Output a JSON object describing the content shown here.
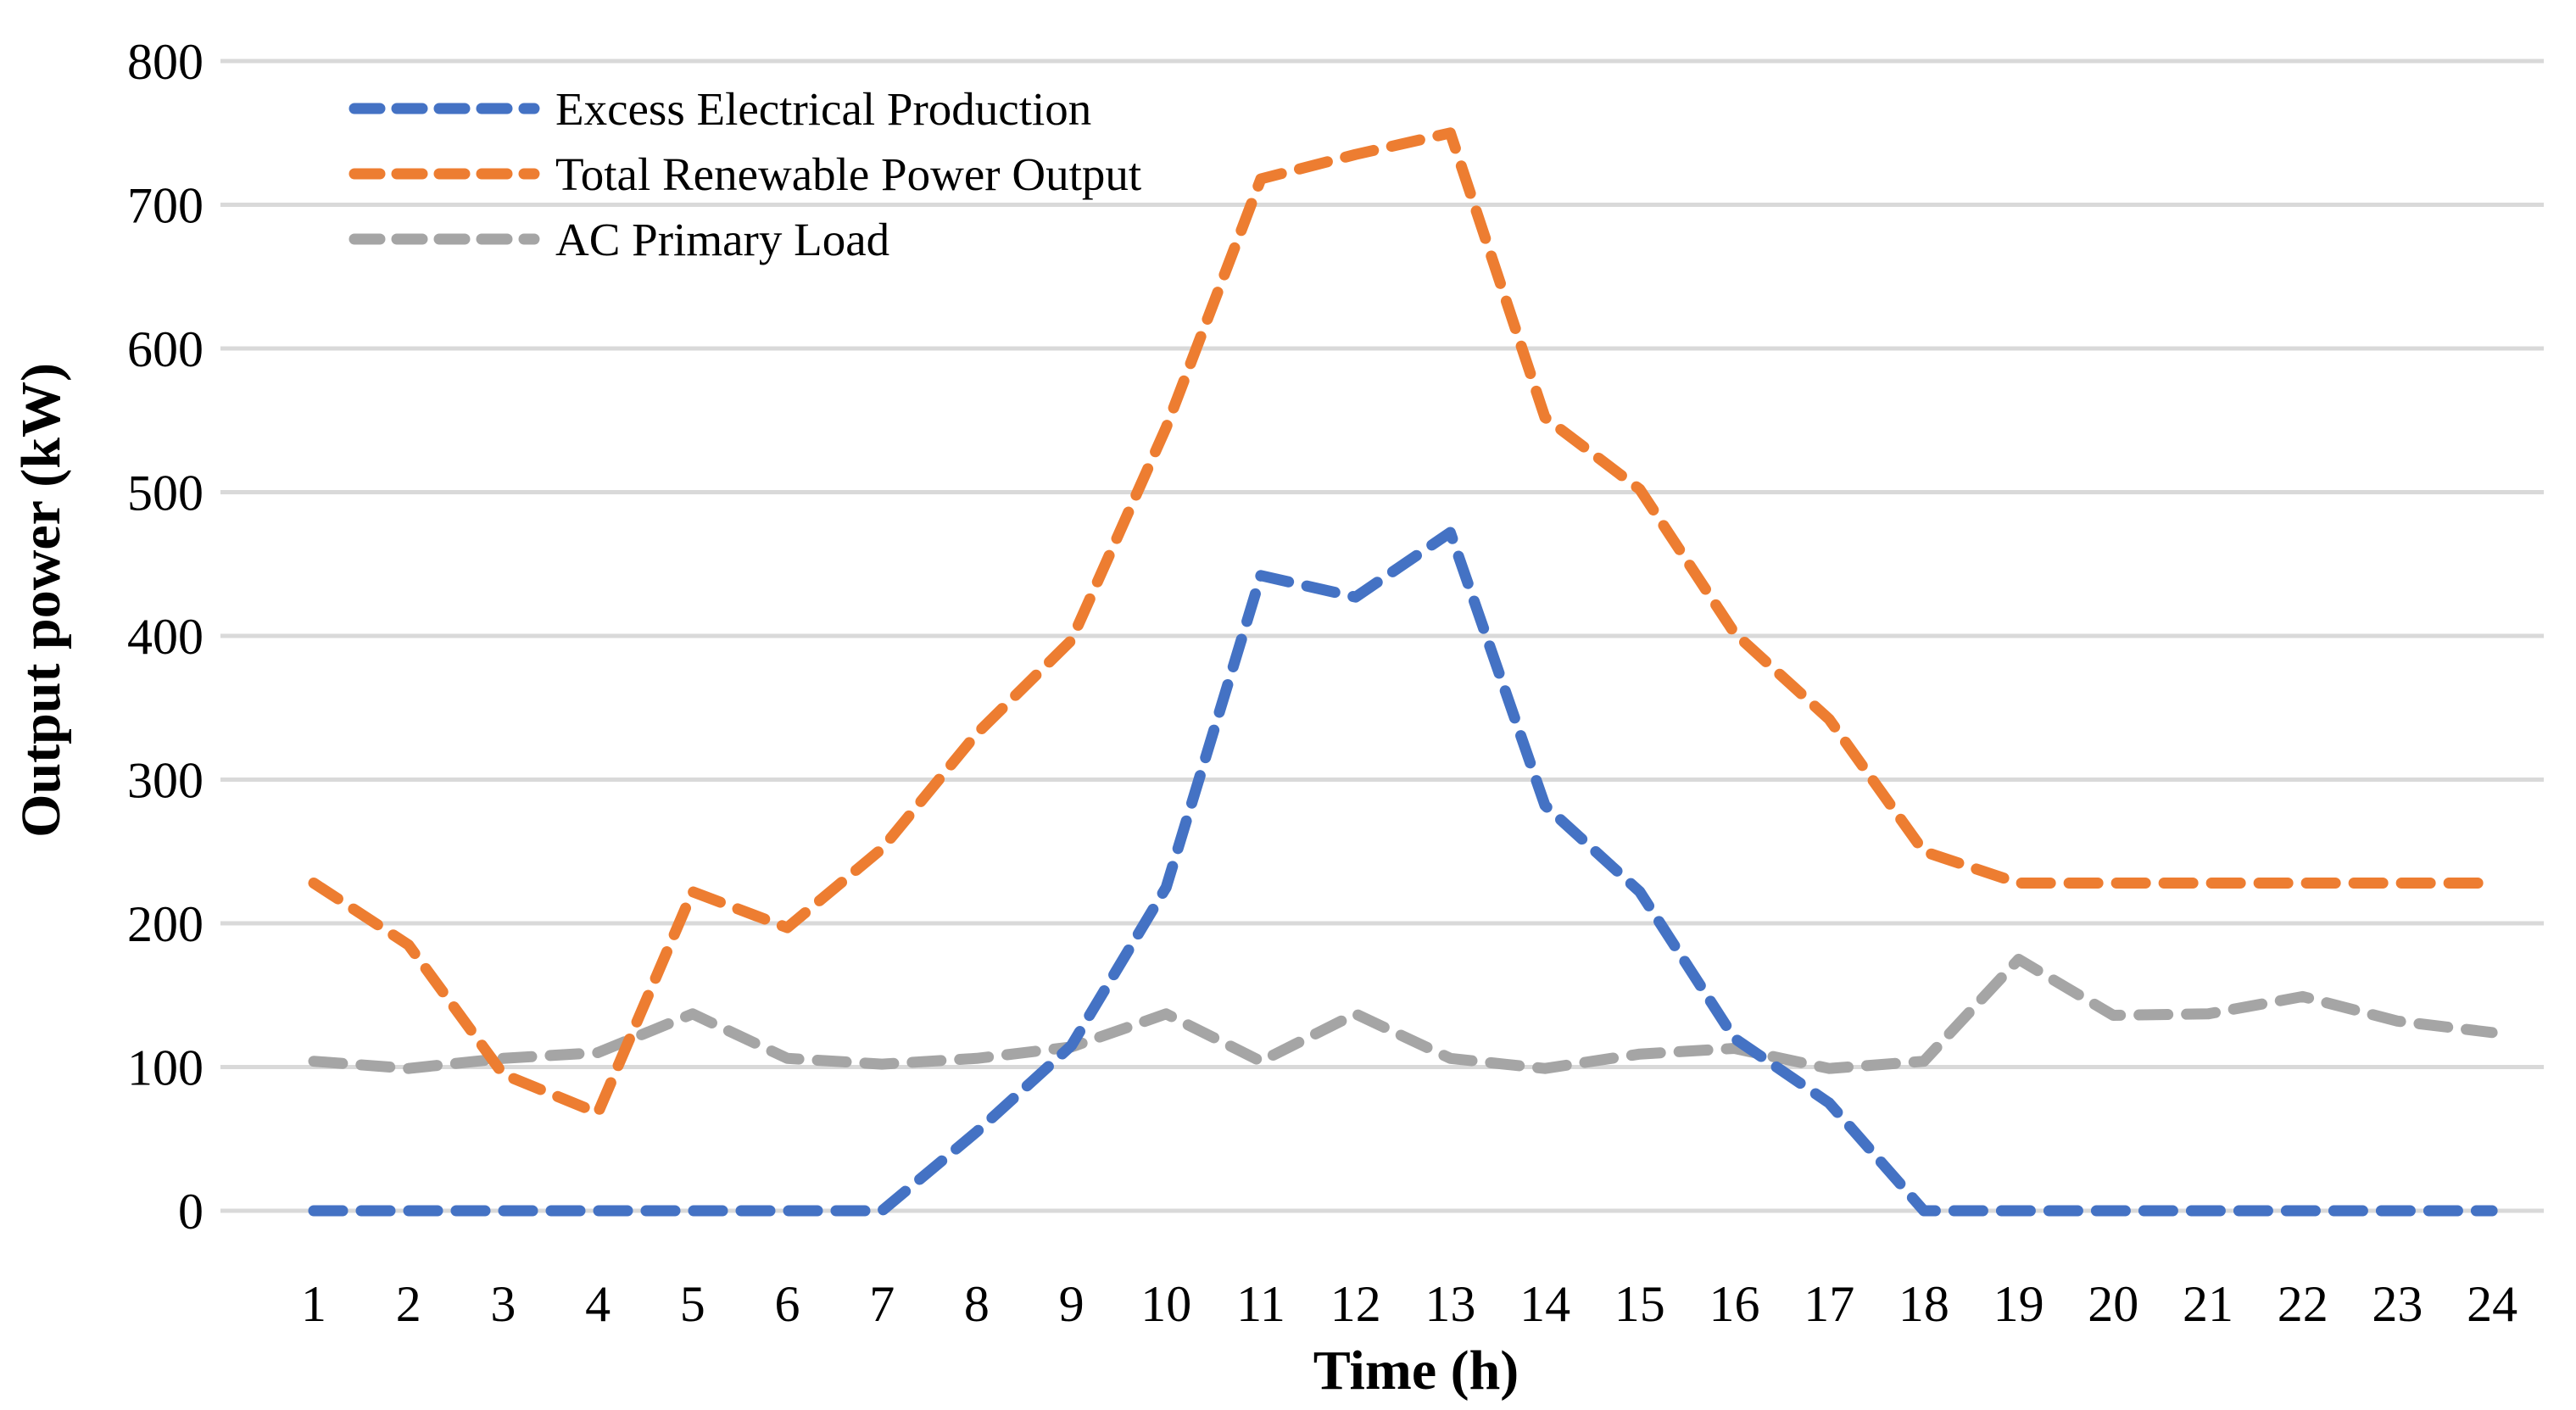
{
  "chart_data": {
    "type": "line",
    "title": "",
    "xlabel": "Time (h)",
    "ylabel": "Output power (kW)",
    "categories": [
      "1",
      "2",
      "3",
      "4",
      "5",
      "6",
      "7",
      "8",
      "9",
      "10",
      "11",
      "12",
      "13",
      "14",
      "15",
      "16",
      "17",
      "18",
      "19",
      "20",
      "21",
      "22",
      "23",
      "24"
    ],
    "ylim": [
      0,
      800
    ],
    "yticks": [
      "0",
      "100",
      "200",
      "300",
      "400",
      "500",
      "600",
      "700",
      "800"
    ],
    "grid": true,
    "legend_position": "top-left",
    "series": [
      {
        "name": "Excess Electrical Production",
        "color": "#4472c4",
        "values": [
          0,
          0,
          0,
          0,
          0,
          0,
          0,
          55,
          115,
          225,
          442,
          427,
          472,
          282,
          222,
          120,
          75,
          0,
          0,
          0,
          0,
          0,
          0,
          0
        ]
      },
      {
        "name": "Total Renewable Power Output",
        "color": "#ed7d31",
        "values": [
          228,
          185,
          95,
          68,
          222,
          197,
          252,
          332,
          397,
          545,
          718,
          735,
          750,
          552,
          502,
          402,
          342,
          250,
          228,
          228,
          228,
          228,
          228,
          228
        ]
      },
      {
        "name": "AC Primary Load",
        "color": "#a5a5a5",
        "values": [
          104,
          99,
          106,
          110,
          137,
          106,
          102,
          106,
          114,
          137,
          104,
          137,
          106,
          99,
          109,
          113,
          99,
          104,
          175,
          136,
          137,
          149,
          132,
          124
        ]
      }
    ]
  }
}
